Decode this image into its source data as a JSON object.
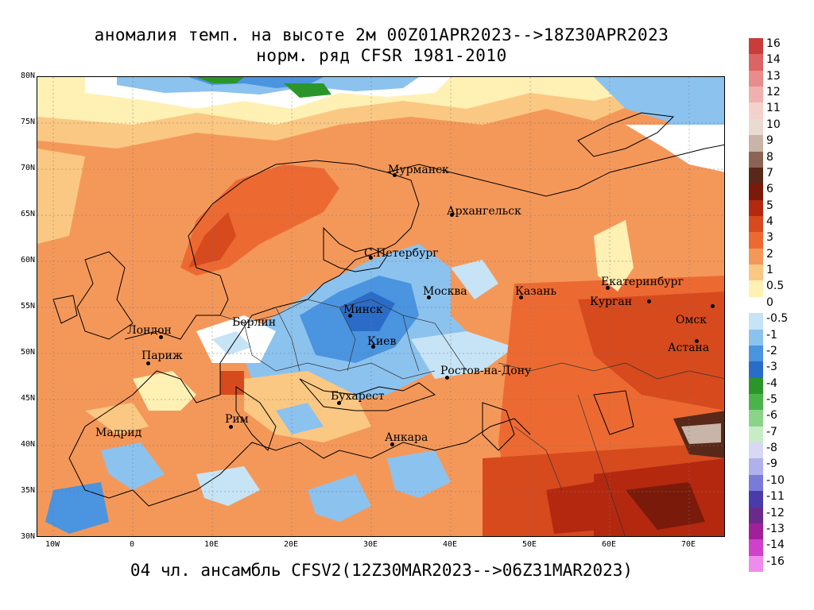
{
  "title_line1": "аномалия темп. на высоте 2м 00Z01APR2023-->18Z30APR2023",
  "title_line2": "норм. ряд CFSR 1981-2010",
  "footer": "04 чл. ансамбль CFSV2(12Z30MAR2023-->06Z31MAR2023)",
  "lat_labels": [
    "80N",
    "75N",
    "70N",
    "65N",
    "60N",
    "55N",
    "50N",
    "45N",
    "40N",
    "35N",
    "30N"
  ],
  "lon_labels": [
    "10W",
    "0",
    "10E",
    "20E",
    "30E",
    "40E",
    "50E",
    "60E",
    "70E"
  ],
  "cities": {
    "murmansk": "Мурманск",
    "arkhangelsk": "Архангельск",
    "spb": "С.Петербург",
    "moscow": "Москва",
    "kazan": "Казань",
    "ekaterinburg": "Екатеринбург",
    "kurgan": "Курган",
    "omsk": "Омск",
    "astana": "Астана",
    "london": "Лондон",
    "paris": "Париж",
    "berlin": "Берлин",
    "minsk": "Минск",
    "kiev": "Киев",
    "rostov": "Ростов-на-Дону",
    "bucharest": "Бухарест",
    "ankara": "Анкара",
    "madrid": "Мадрид",
    "rome": "Рим"
  },
  "colorbar": {
    "labels": [
      "16",
      "14",
      "13",
      "12",
      "11",
      "10",
      "9",
      "8",
      "7",
      "6",
      "5",
      "4",
      "3",
      "2",
      "1",
      "0.5",
      "0",
      "-0.5",
      "-1",
      "-2",
      "-3",
      "-4",
      "-5",
      "-6",
      "-7",
      "-8",
      "-9",
      "-10",
      "-11",
      "-12",
      "-13",
      "-14",
      "-16"
    ],
    "colors": [
      "#c83c3c",
      "#dc6464",
      "#e88c8c",
      "#f0b0b0",
      "#f4d2cc",
      "#eadad4",
      "#c8b4a8",
      "#8c6456",
      "#5a2818",
      "#7a1a0a",
      "#b42810",
      "#d64a1e",
      "#ec6a32",
      "#f4985a",
      "#fac882",
      "#fff0b4",
      "#ffffff",
      "#c6e4f6",
      "#8cc2ee",
      "#4a94e0",
      "#2a6cc8",
      "#2a962a",
      "#4ab44a",
      "#8ad48a",
      "#c8ecc8",
      "#d8d8f4",
      "#b0b0ea",
      "#7a7ad8",
      "#4a3aaa",
      "#6a2a8a",
      "#a0209a",
      "#d040c8",
      "#ee8cee"
    ]
  }
}
